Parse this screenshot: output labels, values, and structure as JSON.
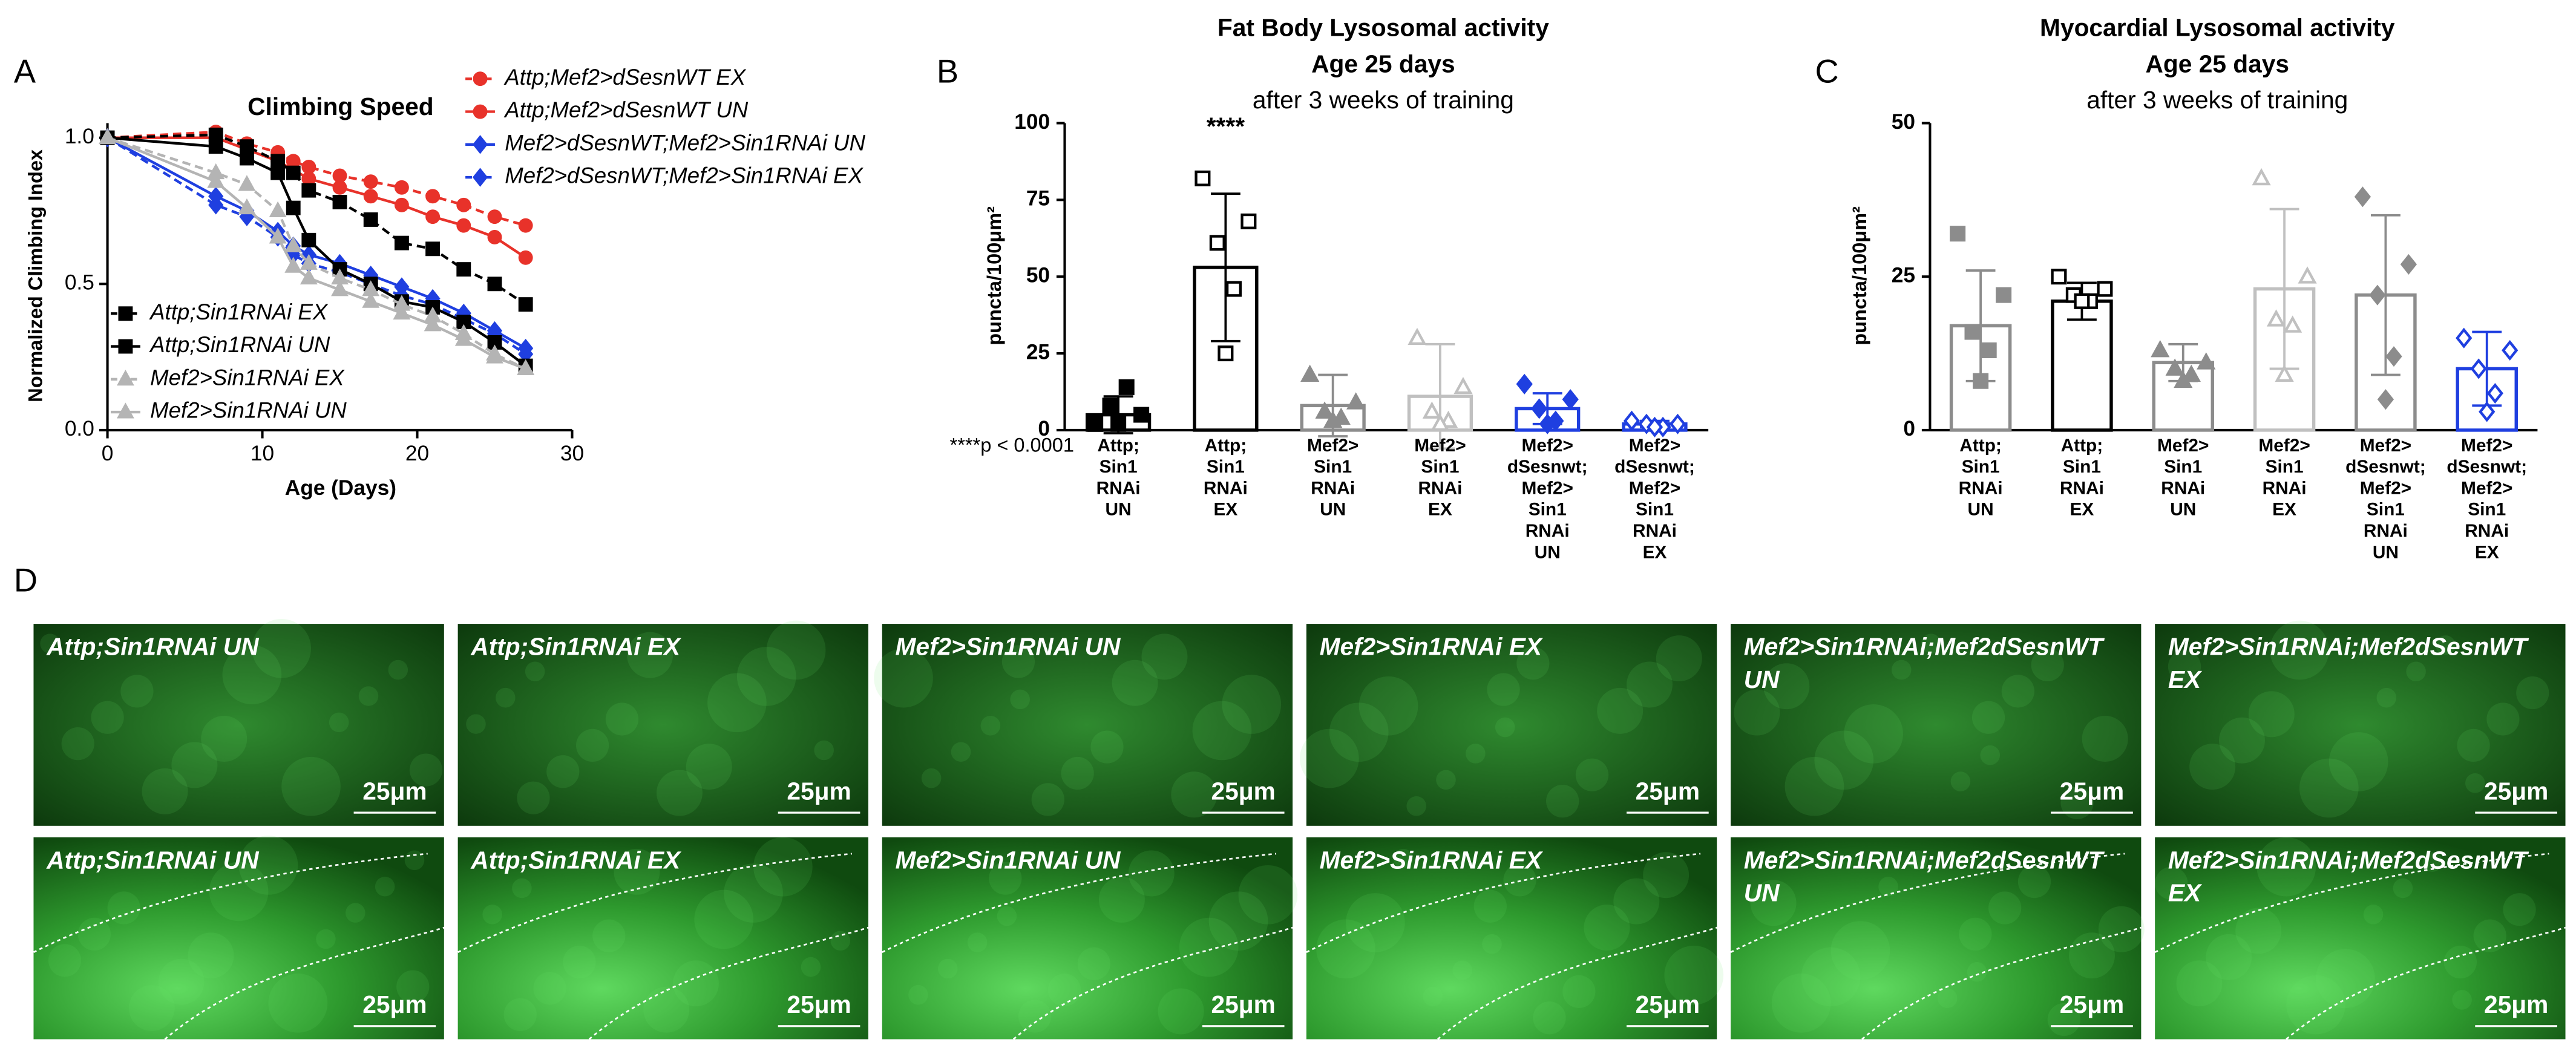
{
  "panel_labels": [
    "A",
    "B",
    "C",
    "D"
  ],
  "chart_data": [
    {
      "type": "line",
      "title": "Climbing Speed",
      "xlabel": "Age (Days)",
      "ylabel": "Normalized Climbing Index",
      "x": [
        0,
        7,
        9,
        11,
        12,
        13,
        15,
        17,
        19,
        21,
        23,
        25,
        27
      ],
      "xlim": [
        0,
        30
      ],
      "xticks": [
        0,
        10,
        20,
        30
      ],
      "ylim": [
        0,
        1.05
      ],
      "yticks": [
        {
          "value": 0,
          "label": "0.0"
        },
        {
          "value": 0.5,
          "label": "0.5"
        },
        {
          "value": 1,
          "label": "1.0"
        }
      ],
      "series": [
        {
          "name": "Attp;Mef2>dSesnWT EX",
          "color": "#e8322a",
          "marker": "circle",
          "dashed": true,
          "legend": "upper-right",
          "values": [
            1.0,
            1.02,
            0.98,
            0.95,
            0.92,
            0.9,
            0.87,
            0.85,
            0.83,
            0.8,
            0.77,
            0.73,
            0.7
          ]
        },
        {
          "name": "Attp;Mef2>dSesnWT UN",
          "color": "#e8322a",
          "marker": "circle",
          "dashed": false,
          "legend": "upper-right",
          "values": [
            1.0,
            1.0,
            0.96,
            0.92,
            0.89,
            0.86,
            0.83,
            0.8,
            0.77,
            0.73,
            0.7,
            0.66,
            0.59
          ]
        },
        {
          "name": "Mef2>dSesnWT;Mef2>Sin1RNAi UN",
          "color": "#1f3fe0",
          "marker": "diamond",
          "dashed": false,
          "legend": "upper-right",
          "values": [
            1.0,
            0.8,
            0.75,
            0.68,
            0.63,
            0.6,
            0.57,
            0.53,
            0.49,
            0.45,
            0.4,
            0.34,
            0.28
          ]
        },
        {
          "name": "Mef2>dSesnWT;Mef2>Sin1RNAi EX",
          "color": "#1f3fe0",
          "marker": "diamond",
          "dashed": true,
          "legend": "upper-right",
          "values": [
            1.0,
            0.77,
            0.73,
            0.66,
            0.6,
            0.57,
            0.54,
            0.5,
            0.46,
            0.43,
            0.38,
            0.33,
            0.26
          ]
        },
        {
          "name": "Attp;Sin1RNAi EX",
          "color": "#000000",
          "marker": "square",
          "dashed": true,
          "legend": "lower-left",
          "values": [
            1.0,
            1.01,
            0.97,
            0.92,
            0.88,
            0.82,
            0.78,
            0.72,
            0.64,
            0.62,
            0.55,
            0.5,
            0.43
          ]
        },
        {
          "name": "Attp;Sin1RNAi UN",
          "color": "#000000",
          "marker": "square",
          "dashed": false,
          "legend": "lower-left",
          "values": [
            1.0,
            0.97,
            0.93,
            0.88,
            0.76,
            0.65,
            0.55,
            0.5,
            0.44,
            0.42,
            0.37,
            0.3,
            0.22
          ]
        },
        {
          "name": "Mef2>Sin1RNAi EX",
          "color": "#b4b4b4",
          "marker": "triangle",
          "dashed": true,
          "legend": "lower-left",
          "values": [
            1.0,
            0.88,
            0.84,
            0.75,
            0.63,
            0.57,
            0.52,
            0.48,
            0.43,
            0.39,
            0.33,
            0.26,
            0.21
          ]
        },
        {
          "name": "Mef2>Sin1RNAi UN",
          "color": "#b4b4b4",
          "marker": "triangle",
          "dashed": false,
          "legend": "lower-left",
          "values": [
            1.0,
            0.85,
            0.76,
            0.66,
            0.56,
            0.52,
            0.48,
            0.44,
            0.4,
            0.36,
            0.31,
            0.25,
            0.21
          ]
        }
      ]
    },
    {
      "type": "bar",
      "title": [
        "Fat Body Lysosomal activity",
        "Age 25 days"
      ],
      "subtitle": "after 3 weeks of training",
      "ylabel": "puncta/100μm²",
      "note": "****p < 0.0001",
      "categories": [
        [
          "Attp;",
          "Sin1",
          "RNAi",
          "UN"
        ],
        [
          "Attp;",
          "Sin1",
          "RNAi",
          "EX"
        ],
        [
          "Mef2>",
          "Sin1",
          "RNAi",
          "UN"
        ],
        [
          "Mef2>",
          "Sin1",
          "RNAi",
          "EX"
        ],
        [
          "Mef2>",
          "dSesnwt;",
          "Mef2>",
          "Sin1",
          "RNAi",
          "UN"
        ],
        [
          "Mef2>",
          "dSesnwt;",
          "Mef2>",
          "Sin1",
          "RNAi",
          "EX"
        ]
      ],
      "values": [
        5,
        53,
        8,
        11,
        7,
        2
      ],
      "errors": [
        6,
        24,
        10,
        17,
        5,
        1
      ],
      "points": [
        [
          2,
          5,
          8,
          14,
          2
        ],
        [
          82,
          68,
          61,
          46,
          25
        ],
        [
          18,
          9,
          6,
          4,
          3
        ],
        [
          30,
          14,
          6,
          3,
          2
        ],
        [
          15,
          10,
          7,
          3,
          2
        ],
        [
          3,
          2,
          2,
          1,
          1
        ]
      ],
      "significance": [
        null,
        "****",
        null,
        null,
        null,
        null
      ],
      "colors": [
        "#000000",
        "#000000",
        "#8c8c8c",
        "#c0c0c0",
        "#1f3fe0",
        "#1f3fe0"
      ],
      "markers": [
        "square",
        "square",
        "triangle",
        "triangle",
        "diamond",
        "diamond"
      ],
      "filled": [
        true,
        false,
        true,
        false,
        true,
        false
      ],
      "ylim": [
        0,
        100
      ],
      "yticks": [
        0,
        25,
        50,
        75,
        100
      ]
    },
    {
      "type": "bar",
      "title": [
        "Myocardial Lysosomal activity",
        "Age 25 days"
      ],
      "subtitle": "after 3 weeks of training",
      "ylabel": "puncta/100μm²",
      "categories": [
        [
          "Attp;",
          "Sin1",
          "RNAi",
          "UN"
        ],
        [
          "Attp;",
          "Sin1",
          "RNAi",
          "EX"
        ],
        [
          "Mef2>",
          "Sin1",
          "RNAi",
          "UN"
        ],
        [
          "Mef2>",
          "Sin1",
          "RNAi",
          "EX"
        ],
        [
          "Mef2>",
          "dSesnwt;",
          "Mef2>",
          "Sin1",
          "RNAi",
          "UN"
        ],
        [
          "Mef2>",
          "dSesnwt;",
          "Mef2>",
          "Sin1",
          "RNAi",
          "EX"
        ]
      ],
      "values": [
        17,
        21,
        11,
        23,
        22,
        10
      ],
      "errors": [
        9,
        3,
        3,
        13,
        13,
        6
      ],
      "points": [
        [
          32,
          22,
          16,
          13,
          8
        ],
        [
          25,
          23,
          22,
          21,
          21
        ],
        [
          13,
          11,
          10,
          9,
          8
        ],
        [
          41,
          25,
          18,
          17,
          9
        ],
        [
          38,
          27,
          22,
          12,
          5
        ],
        [
          15,
          13,
          10,
          6,
          3
        ]
      ],
      "colors": [
        "#8c8c8c",
        "#000000",
        "#8c8c8c",
        "#c0c0c0",
        "#8c8c8c",
        "#1f3fe0"
      ],
      "markers": [
        "square",
        "square",
        "triangle",
        "triangle",
        "diamond",
        "diamond"
      ],
      "filled": [
        true,
        false,
        true,
        false,
        true,
        false
      ],
      "ylim": [
        0,
        50
      ],
      "yticks": [
        0,
        25,
        50
      ]
    }
  ],
  "micrographs": [
    {
      "label": [
        "Attp;Sin1RNAi UN"
      ],
      "scale_bar": "25μm"
    },
    {
      "label": [
        "Attp;Sin1RNAi EX"
      ],
      "scale_bar": "25μm"
    },
    {
      "label": [
        "Mef2>Sin1RNAi UN"
      ],
      "scale_bar": "25μm"
    },
    {
      "label": [
        "Mef2>Sin1RNAi EX"
      ],
      "scale_bar": "25μm"
    },
    {
      "label": [
        "Mef2>Sin1RNAi;Mef2dSesnWT",
        "UN"
      ],
      "scale_bar": "25μm"
    },
    {
      "label": [
        "Mef2>Sin1RNAi;Mef2dSesnWT",
        "EX"
      ],
      "scale_bar": "25μm"
    },
    {
      "label": [
        "Attp;Sin1RNAi UN"
      ],
      "scale_bar": "25μm"
    },
    {
      "label": [
        "Attp;Sin1RNAi EX"
      ],
      "scale_bar": "25μm"
    },
    {
      "label": [
        "Mef2>Sin1RNAi UN"
      ],
      "scale_bar": "25μm"
    },
    {
      "label": [
        "Mef2>Sin1RNAi EX"
      ],
      "scale_bar": "25μm"
    },
    {
      "label": [
        "Mef2>Sin1RNAi;Mef2dSesnWT",
        "UN"
      ],
      "scale_bar": "25μm"
    },
    {
      "label": [
        "Mef2>Sin1RNAi;Mef2dSesnWT",
        "EX"
      ],
      "scale_bar": "25μm"
    }
  ]
}
